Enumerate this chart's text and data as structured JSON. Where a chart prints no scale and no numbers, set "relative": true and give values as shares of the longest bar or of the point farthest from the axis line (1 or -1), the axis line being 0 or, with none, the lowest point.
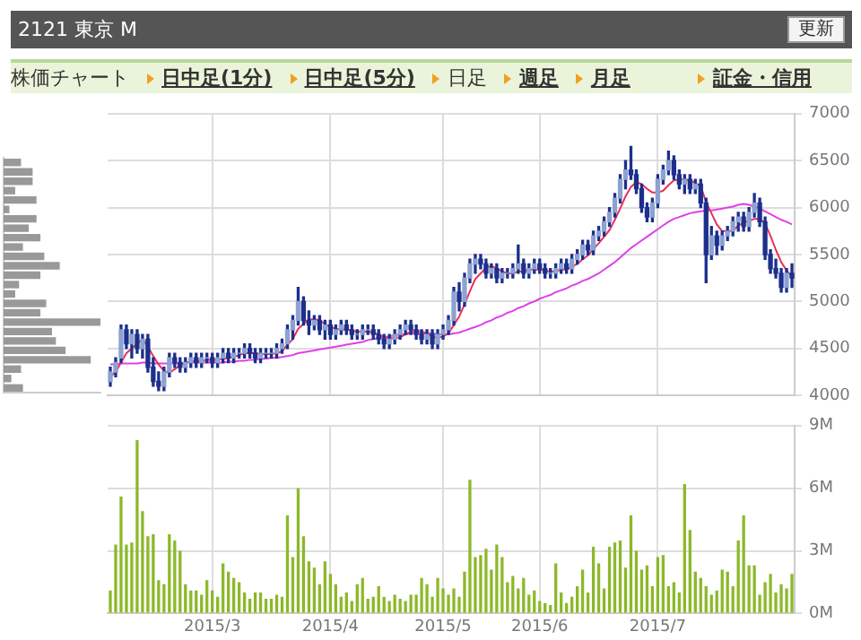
{
  "chart_data": [
    {
      "type": "other",
      "title": "2121 東京 M",
      "annotations": [
        "更新",
        "株価チャート",
        "日中足(1分)",
        "日中足(5分)",
        "日足",
        "週足",
        "月足",
        "証金・信用"
      ]
    },
    {
      "type": "bar",
      "orientation": "horizontal",
      "relative": true,
      "tick_labels": false,
      "color": "#999999",
      "categories": [
        null,
        null,
        null,
        null,
        null,
        null,
        null,
        null,
        null,
        null,
        null,
        null,
        null,
        null,
        null,
        null,
        null,
        null,
        null,
        null,
        null,
        null,
        null,
        null,
        null
      ],
      "values": [
        0.18,
        0.3,
        0.3,
        0.12,
        0.34,
        0.06,
        0.34,
        0.26,
        0.38,
        0.2,
        0.42,
        0.58,
        0.38,
        0.16,
        0.12,
        0.44,
        0.38,
        1,
        0.5,
        0.54,
        0.64,
        0.9,
        0.18,
        0.08,
        0.2
      ]
    },
    {
      "type": "candlestick",
      "tick_labels": "y",
      "grid": true,
      "ylim": [
        4000,
        7000
      ],
      "yticks": [
        4000,
        4500,
        5000,
        5500,
        6000,
        6500,
        7000
      ],
      "categories": [
        null,
        null,
        null,
        null,
        null,
        null,
        null,
        null,
        null,
        null,
        null,
        null,
        null,
        null,
        null,
        null,
        null,
        null,
        null,
        "2015/3",
        null,
        null,
        null,
        null,
        null,
        null,
        null,
        null,
        null,
        null,
        null,
        null,
        null,
        null,
        null,
        null,
        null,
        null,
        null,
        null,
        null,
        "2015/4",
        null,
        null,
        null,
        null,
        null,
        null,
        null,
        null,
        null,
        null,
        null,
        null,
        null,
        null,
        null,
        null,
        null,
        null,
        null,
        null,
        "2015/5",
        null,
        null,
        null,
        null,
        null,
        null,
        null,
        null,
        null,
        null,
        null,
        null,
        null,
        null,
        null,
        null,
        null,
        "2015/6",
        null,
        null,
        null,
        null,
        null,
        null,
        null,
        null,
        null,
        null,
        null,
        null,
        null,
        null,
        null,
        null,
        null,
        null,
        null,
        null,
        null,
        "2015/7",
        null,
        null,
        null,
        null,
        null,
        null,
        null,
        null,
        null,
        null,
        null,
        null,
        null,
        null,
        null,
        null,
        null,
        null,
        null,
        null,
        null,
        null,
        null,
        null,
        null
      ],
      "ohlc": [
        [
          4150,
          4300,
          4100,
          4250
        ],
        [
          4250,
          4400,
          4200,
          4350
        ],
        [
          4400,
          4750,
          4350,
          4700
        ],
        [
          4700,
          4750,
          4500,
          4550
        ],
        [
          4550,
          4700,
          4400,
          4650
        ],
        [
          4650,
          4700,
          4450,
          4500
        ],
        [
          4500,
          4650,
          4400,
          4600
        ],
        [
          4600,
          4650,
          4250,
          4300
        ],
        [
          4300,
          4400,
          4100,
          4150
        ],
        [
          4150,
          4250,
          4050,
          4100
        ],
        [
          4100,
          4300,
          4050,
          4250
        ],
        [
          4250,
          4450,
          4200,
          4400
        ],
        [
          4400,
          4450,
          4300,
          4350
        ],
        [
          4350,
          4400,
          4250,
          4300
        ],
        [
          4300,
          4400,
          4250,
          4350
        ],
        [
          4350,
          4450,
          4300,
          4400
        ],
        [
          4400,
          4450,
          4300,
          4350
        ],
        [
          4350,
          4450,
          4300,
          4400
        ],
        [
          4400,
          4450,
          4350,
          4400
        ],
        [
          4400,
          4450,
          4300,
          4350
        ],
        [
          4350,
          4450,
          4300,
          4400
        ],
        [
          4400,
          4500,
          4350,
          4450
        ],
        [
          4450,
          4500,
          4350,
          4400
        ],
        [
          4400,
          4500,
          4350,
          4450
        ],
        [
          4450,
          4500,
          4400,
          4450
        ],
        [
          4450,
          4550,
          4400,
          4500
        ],
        [
          4500,
          4550,
          4400,
          4450
        ],
        [
          4450,
          4500,
          4350,
          4400
        ],
        [
          4400,
          4500,
          4350,
          4450
        ],
        [
          4450,
          4500,
          4400,
          4450
        ],
        [
          4450,
          4500,
          4400,
          4450
        ],
        [
          4450,
          4550,
          4400,
          4500
        ],
        [
          4500,
          4600,
          4450,
          4550
        ],
        [
          4550,
          4750,
          4500,
          4700
        ],
        [
          4700,
          4850,
          4600,
          4800
        ],
        [
          4800,
          5150,
          4750,
          5000
        ],
        [
          5000,
          5050,
          4750,
          4800
        ],
        [
          4800,
          4900,
          4650,
          4750
        ],
        [
          4750,
          4850,
          4700,
          4800
        ],
        [
          4800,
          4850,
          4650,
          4700
        ],
        [
          4700,
          4800,
          4600,
          4750
        ],
        [
          4750,
          4800,
          4600,
          4650
        ],
        [
          4650,
          4750,
          4600,
          4700
        ],
        [
          4700,
          4800,
          4650,
          4750
        ],
        [
          4750,
          4800,
          4650,
          4700
        ],
        [
          4700,
          4750,
          4600,
          4650
        ],
        [
          4650,
          4700,
          4600,
          4650
        ],
        [
          4650,
          4750,
          4600,
          4700
        ],
        [
          4700,
          4750,
          4650,
          4700
        ],
        [
          4700,
          4750,
          4600,
          4650
        ],
        [
          4650,
          4700,
          4550,
          4600
        ],
        [
          4600,
          4650,
          4500,
          4550
        ],
        [
          4550,
          4650,
          4500,
          4600
        ],
        [
          4600,
          4700,
          4550,
          4650
        ],
        [
          4650,
          4750,
          4600,
          4700
        ],
        [
          4700,
          4800,
          4650,
          4750
        ],
        [
          4750,
          4800,
          4650,
          4700
        ],
        [
          4700,
          4750,
          4600,
          4650
        ],
        [
          4650,
          4700,
          4550,
          4600
        ],
        [
          4600,
          4700,
          4550,
          4650
        ],
        [
          4650,
          4700,
          4500,
          4550
        ],
        [
          4550,
          4700,
          4500,
          4650
        ],
        [
          4650,
          4750,
          4600,
          4700
        ],
        [
          4700,
          4850,
          4650,
          4800
        ],
        [
          4800,
          5150,
          4750,
          5100
        ],
        [
          5100,
          5200,
          4900,
          5000
        ],
        [
          5000,
          5300,
          4950,
          5250
        ],
        [
          5250,
          5450,
          5200,
          5400
        ],
        [
          5400,
          5500,
          5300,
          5450
        ],
        [
          5450,
          5500,
          5350,
          5400
        ],
        [
          5400,
          5450,
          5250,
          5300
        ],
        [
          5300,
          5400,
          5250,
          5350
        ],
        [
          5350,
          5400,
          5200,
          5250
        ],
        [
          5250,
          5350,
          5200,
          5300
        ],
        [
          5300,
          5350,
          5250,
          5300
        ],
        [
          5300,
          5400,
          5250,
          5350
        ],
        [
          5350,
          5600,
          5300,
          5400
        ],
        [
          5400,
          5450,
          5250,
          5300
        ],
        [
          5300,
          5400,
          5250,
          5350
        ],
        [
          5350,
          5450,
          5300,
          5400
        ],
        [
          5400,
          5450,
          5300,
          5350
        ],
        [
          5350,
          5400,
          5250,
          5300
        ],
        [
          5300,
          5350,
          5250,
          5300
        ],
        [
          5300,
          5400,
          5250,
          5350
        ],
        [
          5350,
          5450,
          5300,
          5400
        ],
        [
          5400,
          5450,
          5300,
          5350
        ],
        [
          5350,
          5500,
          5300,
          5450
        ],
        [
          5450,
          5550,
          5400,
          5500
        ],
        [
          5500,
          5650,
          5450,
          5600
        ],
        [
          5600,
          5650,
          5500,
          5550
        ],
        [
          5550,
          5750,
          5500,
          5700
        ],
        [
          5700,
          5800,
          5650,
          5750
        ],
        [
          5750,
          5900,
          5700,
          5850
        ],
        [
          5850,
          6000,
          5800,
          5950
        ],
        [
          5950,
          6150,
          5900,
          6100
        ],
        [
          6100,
          6350,
          6050,
          6300
        ],
        [
          6300,
          6500,
          6200,
          6400
        ],
        [
          6400,
          6650,
          6300,
          6350
        ],
        [
          6350,
          6400,
          6150,
          6200
        ],
        [
          6200,
          6250,
          5950,
          6000
        ],
        [
          6000,
          6050,
          5850,
          5900
        ],
        [
          5900,
          6100,
          5850,
          6050
        ],
        [
          6050,
          6350,
          6000,
          6300
        ],
        [
          6300,
          6450,
          6250,
          6400
        ],
        [
          6400,
          6600,
          6350,
          6500
        ],
        [
          6500,
          6550,
          6300,
          6350
        ],
        [
          6350,
          6400,
          6200,
          6250
        ],
        [
          6250,
          6350,
          6150,
          6300
        ],
        [
          6300,
          6350,
          6150,
          6200
        ],
        [
          6200,
          6300,
          6150,
          6250
        ],
        [
          6250,
          6300,
          6000,
          6050
        ],
        [
          6050,
          6100,
          5200,
          5500
        ],
        [
          5500,
          5800,
          5450,
          5700
        ],
        [
          5700,
          5750,
          5500,
          5600
        ],
        [
          5600,
          5750,
          5550,
          5700
        ],
        [
          5700,
          5800,
          5650,
          5750
        ],
        [
          5750,
          5900,
          5700,
          5850
        ],
        [
          5850,
          5950,
          5750,
          5900
        ],
        [
          5900,
          5950,
          5750,
          5800
        ],
        [
          5800,
          6000,
          5750,
          5950
        ],
        [
          5950,
          6150,
          5900,
          6050
        ],
        [
          6050,
          6100,
          5800,
          5850
        ],
        [
          5850,
          5900,
          5450,
          5500
        ],
        [
          5500,
          5550,
          5300,
          5350
        ],
        [
          5350,
          5450,
          5250,
          5300
        ],
        [
          5300,
          5350,
          5100,
          5150
        ],
        [
          5150,
          5350,
          5100,
          5300
        ],
        [
          5300,
          5400,
          5150,
          5250
        ]
      ],
      "series": [
        {
          "type": "line",
          "color": "#e8305a",
          "values": [
            4200,
            4250,
            4350,
            4450,
            4500,
            4550,
            4600,
            4520,
            4420,
            4330,
            4260,
            4240,
            4280,
            4320,
            4350,
            4360,
            4370,
            4370,
            4380,
            4380,
            4380,
            4390,
            4400,
            4410,
            4430,
            4450,
            4450,
            4450,
            4440,
            4440,
            4440,
            4450,
            4470,
            4540,
            4600,
            4710,
            4760,
            4810,
            4810,
            4800,
            4760,
            4730,
            4710,
            4700,
            4700,
            4690,
            4680,
            4680,
            4680,
            4670,
            4650,
            4620,
            4610,
            4610,
            4620,
            4650,
            4680,
            4690,
            4680,
            4660,
            4630,
            4610,
            4630,
            4660,
            4750,
            4840,
            4970,
            5110,
            5240,
            5300,
            5360,
            5380,
            5350,
            5320,
            5300,
            5300,
            5320,
            5320,
            5340,
            5340,
            5340,
            5330,
            5320,
            5320,
            5340,
            5340,
            5370,
            5400,
            5450,
            5490,
            5560,
            5620,
            5690,
            5760,
            5870,
            5990,
            6120,
            6220,
            6270,
            6250,
            6200,
            6160,
            6160,
            6180,
            6240,
            6290,
            6300,
            6300,
            6290,
            6260,
            6230,
            6060,
            5940,
            5820,
            5750,
            5750,
            5750,
            5810,
            5840,
            5860,
            5880,
            5880,
            5830,
            5700,
            5550,
            5420,
            5330,
            5270
          ]
        },
        {
          "type": "line",
          "color": "#e040e8",
          "values": [
            4330,
            4330,
            4340,
            4340,
            4340,
            4340,
            4350,
            4350,
            4340,
            4340,
            4340,
            4340,
            4340,
            4340,
            4350,
            4350,
            4350,
            4350,
            4350,
            4350,
            4350,
            4350,
            4360,
            4360,
            4370,
            4370,
            4380,
            4380,
            4390,
            4390,
            4400,
            4400,
            4410,
            4420,
            4430,
            4450,
            4460,
            4470,
            4480,
            4490,
            4500,
            4510,
            4520,
            4530,
            4540,
            4550,
            4560,
            4570,
            4590,
            4600,
            4610,
            4620,
            4630,
            4640,
            4650,
            4650,
            4660,
            4660,
            4660,
            4660,
            4660,
            4650,
            4650,
            4650,
            4660,
            4670,
            4690,
            4710,
            4730,
            4750,
            4780,
            4800,
            4830,
            4850,
            4880,
            4900,
            4930,
            4950,
            4980,
            5000,
            5030,
            5050,
            5070,
            5100,
            5120,
            5140,
            5170,
            5190,
            5220,
            5240,
            5270,
            5300,
            5340,
            5380,
            5420,
            5470,
            5520,
            5570,
            5610,
            5650,
            5690,
            5730,
            5770,
            5810,
            5850,
            5880,
            5900,
            5920,
            5940,
            5950,
            5960,
            5970,
            5970,
            5980,
            5990,
            6000,
            6010,
            6030,
            6040,
            6030,
            6010,
            5990,
            5960,
            5930,
            5900,
            5870,
            5850,
            5820
          ]
        }
      ]
    },
    {
      "type": "bar",
      "grid": true,
      "color": "#8cb82a",
      "ylim": [
        0,
        9
      ],
      "yticks": [
        {
          "value": 0,
          "label": "0M"
        },
        {
          "value": 3,
          "label": "3M"
        },
        {
          "value": 6,
          "label": "6M"
        },
        {
          "value": 9,
          "label": "9M"
        }
      ],
      "categories": [
        null,
        null,
        null,
        null,
        null,
        null,
        null,
        null,
        null,
        null,
        null,
        null,
        null,
        null,
        null,
        null,
        null,
        null,
        null,
        "2015/3",
        null,
        null,
        null,
        null,
        null,
        null,
        null,
        null,
        null,
        null,
        null,
        null,
        null,
        null,
        null,
        null,
        null,
        null,
        null,
        null,
        null,
        "2015/4",
        null,
        null,
        null,
        null,
        null,
        null,
        null,
        null,
        null,
        null,
        null,
        null,
        null,
        null,
        null,
        null,
        null,
        null,
        null,
        null,
        "2015/5",
        null,
        null,
        null,
        null,
        null,
        null,
        null,
        null,
        null,
        null,
        null,
        null,
        null,
        null,
        null,
        null,
        null,
        "2015/6",
        null,
        null,
        null,
        null,
        null,
        null,
        null,
        null,
        null,
        null,
        null,
        null,
        null,
        null,
        null,
        null,
        null,
        null,
        null,
        null,
        null,
        "2015/7",
        null,
        null,
        null,
        null,
        null,
        null,
        null,
        null,
        null,
        null,
        null,
        null,
        null,
        null,
        null,
        null,
        null,
        null,
        null,
        null,
        null,
        null,
        null,
        null,
        null
      ],
      "values": [
        1.1,
        3.3,
        5.6,
        3.3,
        3.4,
        8.3,
        4.9,
        3.7,
        3.8,
        1.6,
        1.4,
        3.8,
        3.5,
        3.0,
        1.4,
        1.1,
        1.1,
        0.9,
        1.6,
        1.1,
        0.8,
        2.4,
        2.0,
        1.7,
        1.5,
        1.0,
        0.7,
        1.0,
        1.0,
        0.7,
        0.7,
        0.9,
        0.8,
        4.7,
        2.7,
        6.0,
        3.7,
        2.5,
        2.2,
        1.4,
        2.5,
        1.9,
        1.4,
        0.8,
        1.0,
        0.6,
        1.4,
        1.7,
        0.7,
        0.8,
        1.3,
        0.8,
        0.6,
        0.9,
        0.7,
        0.6,
        0.9,
        0.9,
        1.7,
        1.4,
        0.8,
        1.7,
        1.2,
        0.9,
        1.2,
        0.8,
        2.0,
        6.4,
        2.7,
        2.8,
        3.1,
        2.1,
        3.3,
        2.7,
        1.5,
        1.8,
        1.2,
        1.7,
        0.9,
        1.1,
        0.6,
        0.5,
        0.4,
        2.4,
        1.0,
        0.5,
        0.8,
        1.3,
        2.1,
        1.0,
        3.2,
        2.4,
        1.2,
        3.2,
        3.4,
        3.5,
        2.2,
        4.7,
        3.0,
        2.1,
        2.3,
        1.3,
        2.7,
        2.8,
        1.3,
        1.5,
        1.0,
        6.2,
        4.0,
        2.0,
        1.7,
        1.3,
        0.9,
        1.1,
        2.1,
        2.0,
        1.3,
        3.5,
        4.7,
        2.3,
        2.3,
        0.9,
        1.5,
        1.9,
        1.0,
        1.4,
        1.2,
        1.9
      ]
    }
  ]
}
